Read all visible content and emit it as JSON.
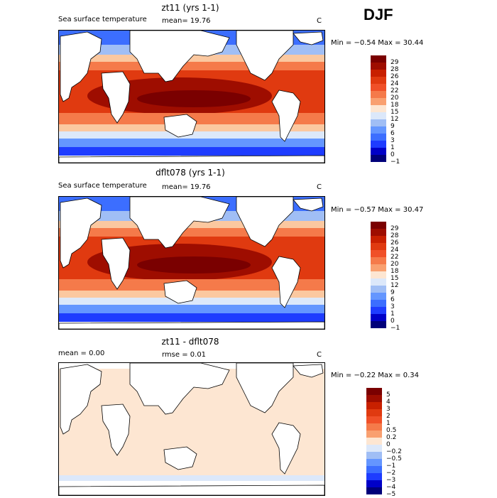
{
  "season": "DJF",
  "colors": {
    "land": "#ffffff",
    "coast": "#000000",
    "sst_scale": [
      "#00007a",
      "#0000c8",
      "#1e3cff",
      "#3c6eff",
      "#6496ff",
      "#a0bef5",
      "#dce8fa",
      "#fde6d2",
      "#fbc8a0",
      "#f9a070",
      "#f57a4a",
      "#f05028",
      "#e03a10",
      "#c82000",
      "#9e0d00",
      "#7a0000"
    ],
    "diff_scale": [
      "#00007a",
      "#0000c8",
      "#1e3cff",
      "#3c6eff",
      "#6496ff",
      "#a0bef5",
      "#dce8fa",
      "#fde6d2",
      "#fbc8a0",
      "#f9a070",
      "#f57a4a",
      "#f05028",
      "#e03a10",
      "#c82000",
      "#9e0d00",
      "#7a0000"
    ]
  },
  "panels": [
    {
      "title": "zt11 (yrs 1-1)",
      "variable": "Sea surface temperature",
      "stat": "mean=   19.76",
      "units": "C",
      "minmax": "Min =  −0.54  Max =   30.44",
      "levels": [
        "29",
        "28",
        "26",
        "24",
        "22",
        "20",
        "18",
        "15",
        "12",
        "9",
        "6",
        "3",
        "1",
        "0",
        "−1"
      ]
    },
    {
      "title": "dflt078 (yrs 1-1)",
      "variable": "Sea surface temperature",
      "stat": "mean=   19.76",
      "units": "C",
      "minmax": "Min =  −0.57  Max =   30.47",
      "levels": [
        "29",
        "28",
        "26",
        "24",
        "22",
        "20",
        "18",
        "15",
        "12",
        "9",
        "6",
        "3",
        "1",
        "0",
        "−1"
      ]
    },
    {
      "title": "zt11 - dflt078",
      "variable": "mean =     0.00",
      "stat": "rmse =     0.01",
      "units": "C",
      "minmax": "Min =  −0.22  Max =    0.34",
      "levels": [
        "5",
        "4",
        "3",
        "2",
        "1",
        "0.5",
        "0.2",
        "0",
        "−0.2",
        "−0.5",
        "−1",
        "−2",
        "−3",
        "−4",
        "−5"
      ]
    }
  ]
}
